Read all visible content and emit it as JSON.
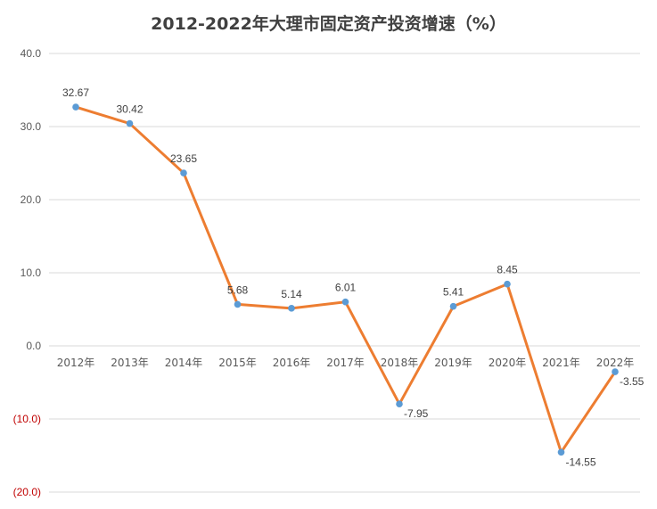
{
  "chart_data": {
    "type": "line",
    "title": "2012-2022年大理市固定资产投资增速（%）",
    "categories": [
      "2012年",
      "2013年",
      "2014年",
      "2015年",
      "2016年",
      "2017年",
      "2018年",
      "2019年",
      "2020年",
      "2021年",
      "2022年"
    ],
    "series": [
      {
        "values": [
          32.67,
          30.42,
          23.65,
          5.68,
          5.14,
          6.01,
          -7.95,
          5.41,
          8.45,
          -14.55,
          -3.55
        ]
      }
    ],
    "data_labels": [
      "32.67",
      "30.42",
      "23.65",
      "5.68",
      "5.14",
      "6.01",
      "-7.95",
      "5.41",
      "8.45",
      "-14.55",
      "-3.55"
    ],
    "y_ticks": [
      40,
      30,
      20,
      10,
      0,
      -10,
      -20
    ],
    "y_tick_labels": [
      "40.0",
      "30.0",
      "20.0",
      "10.0",
      "0.0",
      "(10.0)",
      "(20.0)"
    ],
    "ylim": [
      -20,
      40
    ],
    "xlabel": "",
    "ylabel": "",
    "grid": true,
    "colors": {
      "line": "#ED7D31",
      "marker": "#5B9BD5",
      "grid": "#D9D9D9",
      "negative_tick": "#C00000",
      "tick": "#595959"
    }
  }
}
